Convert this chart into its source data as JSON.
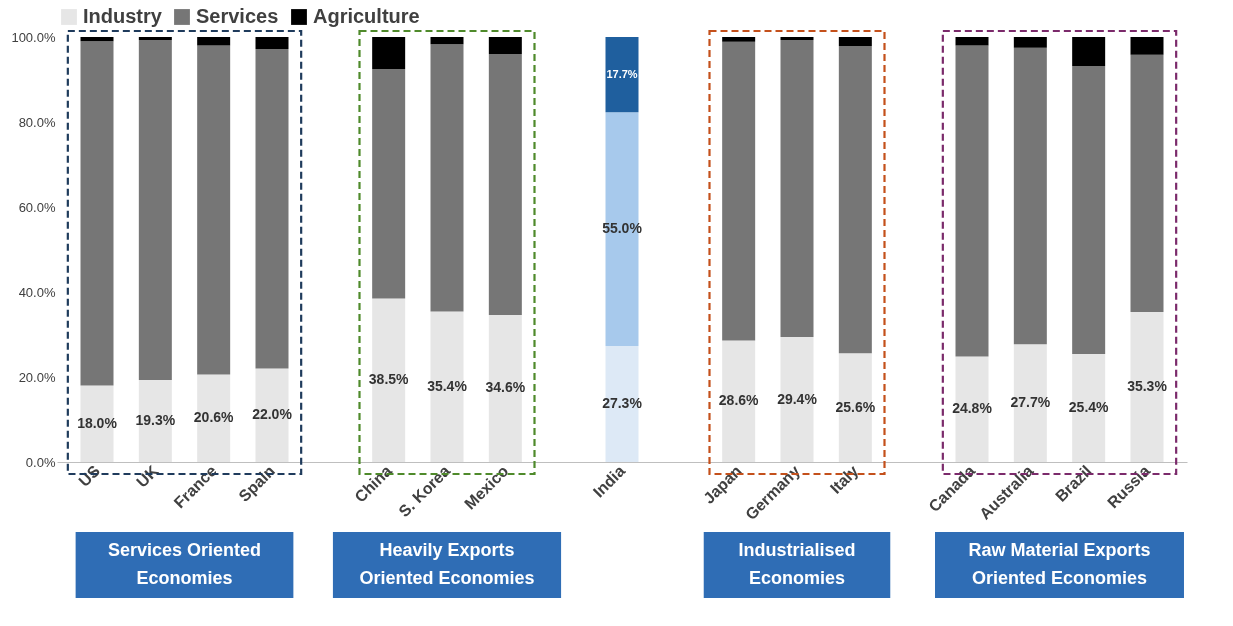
{
  "chart_data": {
    "type": "bar",
    "stacked": true,
    "legend": "top",
    "categories": [
      "US",
      "UK",
      "France",
      "Spain",
      null,
      "China",
      "S. Korea",
      "Mexico",
      null,
      "India",
      null,
      "Japan",
      "Germany",
      "Italy",
      null,
      "Canada",
      "Australia",
      "Brazil",
      "Russia"
    ],
    "series": [
      {
        "name": "Industry",
        "color": "#e6e6e6",
        "colors": [
          "#e6e6e6",
          "#e6e6e6",
          "#e6e6e6",
          "#e6e6e6",
          "#e6e6e6",
          "#e6e6e6",
          "#e6e6e6",
          "#e6e6e6",
          "#e6e6e6",
          "#dde9f6",
          "#e6e6e6",
          "#e6e6e6",
          "#e6e6e6",
          "#e6e6e6",
          "#e6e6e6",
          "#e6e6e6",
          "#e6e6e6",
          "#e6e6e6",
          "#e6e6e6"
        ],
        "values": [
          18.0,
          19.3,
          20.6,
          22.0,
          null,
          38.5,
          35.4,
          34.6,
          null,
          27.3,
          null,
          28.6,
          29.4,
          25.6,
          null,
          24.8,
          27.7,
          25.4,
          35.3
        ],
        "value_labels": [
          "18.0%",
          "19.3%",
          "20.6%",
          "22.0%",
          null,
          "38.5%",
          "35.4%",
          "34.6%",
          null,
          "27.3%",
          null,
          "28.6%",
          "29.4%",
          "25.6%",
          null,
          "24.8%",
          "27.7%",
          "25.4%",
          "35.3%"
        ]
      },
      {
        "name": "Services",
        "color": "#767676",
        "colors": [
          "#767676",
          "#767676",
          "#767676",
          "#767676",
          "#767676",
          "#767676",
          "#767676",
          "#767676",
          "#767676",
          "#a7c9ec",
          "#767676",
          "#767676",
          "#767676",
          "#767676",
          "#767676",
          "#767676",
          "#767676",
          "#767676",
          "#767676"
        ],
        "values": [
          81.0,
          80.0,
          77.4,
          75.2,
          null,
          54.0,
          62.9,
          61.4,
          null,
          55.0,
          null,
          70.3,
          69.9,
          72.3,
          null,
          73.2,
          69.8,
          67.8,
          60.5
        ],
        "value_labels": [
          null,
          null,
          null,
          null,
          null,
          null,
          null,
          null,
          null,
          "55.0%",
          null,
          null,
          null,
          null,
          null,
          null,
          null,
          null,
          null
        ]
      },
      {
        "name": "Agriculture",
        "color": "#000000",
        "colors": [
          "#000000",
          "#000000",
          "#000000",
          "#000000",
          "#000000",
          "#000000",
          "#000000",
          "#000000",
          "#000000",
          "#1f5f9e",
          "#000000",
          "#000000",
          "#000000",
          "#000000",
          "#000000",
          "#000000",
          "#000000",
          "#000000",
          "#000000"
        ],
        "values": [
          1.0,
          0.7,
          2.0,
          2.8,
          null,
          7.5,
          1.7,
          4.0,
          null,
          17.7,
          null,
          1.1,
          0.7,
          2.1,
          null,
          2.0,
          2.5,
          6.8,
          4.2
        ],
        "value_labels": [
          null,
          null,
          null,
          null,
          null,
          null,
          null,
          null,
          null,
          "17.7%",
          null,
          null,
          null,
          null,
          null,
          null,
          null,
          null,
          null
        ]
      }
    ],
    "ylim": [
      0,
      100
    ],
    "yticks": [
      {
        "value": 0,
        "label": "0.0%"
      },
      {
        "value": 20,
        "label": "20.0%"
      },
      {
        "value": 40,
        "label": "40.0%"
      },
      {
        "value": 60,
        "label": "60.0%"
      },
      {
        "value": 80,
        "label": "80.0%"
      },
      {
        "value": 100,
        "label": "100.0%"
      }
    ],
    "annotations": [
      "Services Oriented Economies",
      "Heavily Exports Oriented Economies",
      "Industrialised Economies",
      "Raw Material Exports Oriented Economies"
    ]
  }
}
